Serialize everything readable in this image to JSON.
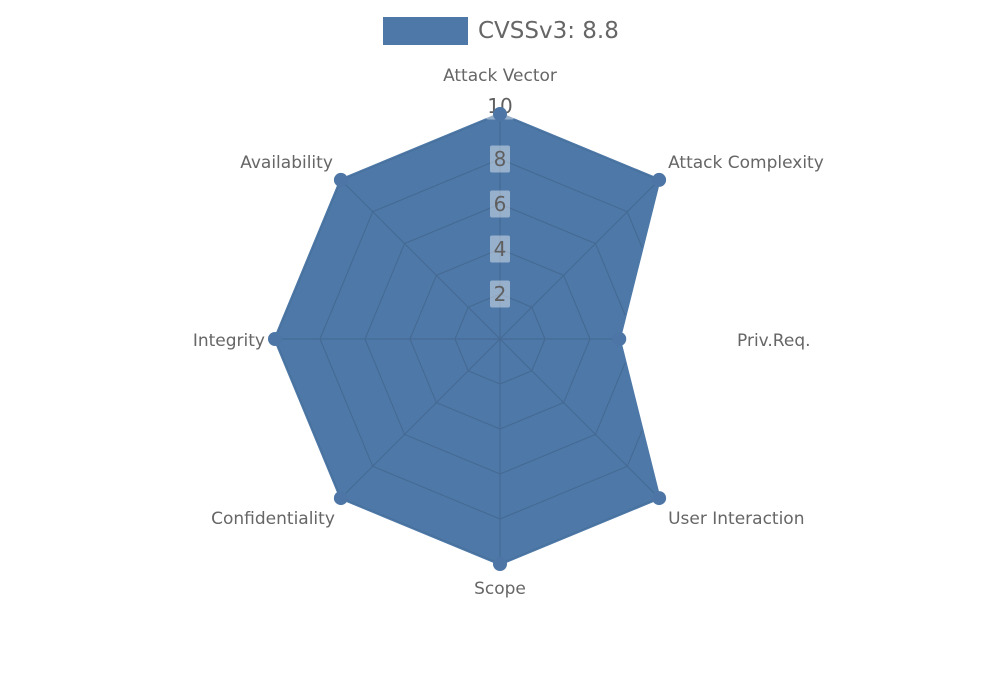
{
  "chart_data": {
    "type": "radar",
    "legend": {
      "label": "CVSSv3: 8.8",
      "position": "top-center"
    },
    "indicators": [
      "Attack Vector",
      "Attack Complexity",
      "Priv.Req.",
      "User Interaction",
      "Scope",
      "Confidentiality",
      "Integrity",
      "Availability"
    ],
    "axis_max": 10,
    "tick_labels": [
      "2",
      "4",
      "6",
      "8",
      "10"
    ],
    "tick_values": [
      2,
      4,
      6,
      8,
      10
    ],
    "series": [
      {
        "name": "CVSSv3: 8.8",
        "values": [
          10,
          10,
          5.3,
          10,
          10,
          10,
          10,
          10
        ]
      }
    ],
    "grid": "polygon-web-inside-fill-only",
    "colors": {
      "series_fill": "#4d78a7",
      "marker": "#4d76a6",
      "grid_line": "#44678f",
      "axis_label": "#666666",
      "tick_text": "#5f5f5f",
      "tick_box_bg": "rgba(255,255,255,0.42)",
      "legend_text": "#666666"
    }
  }
}
